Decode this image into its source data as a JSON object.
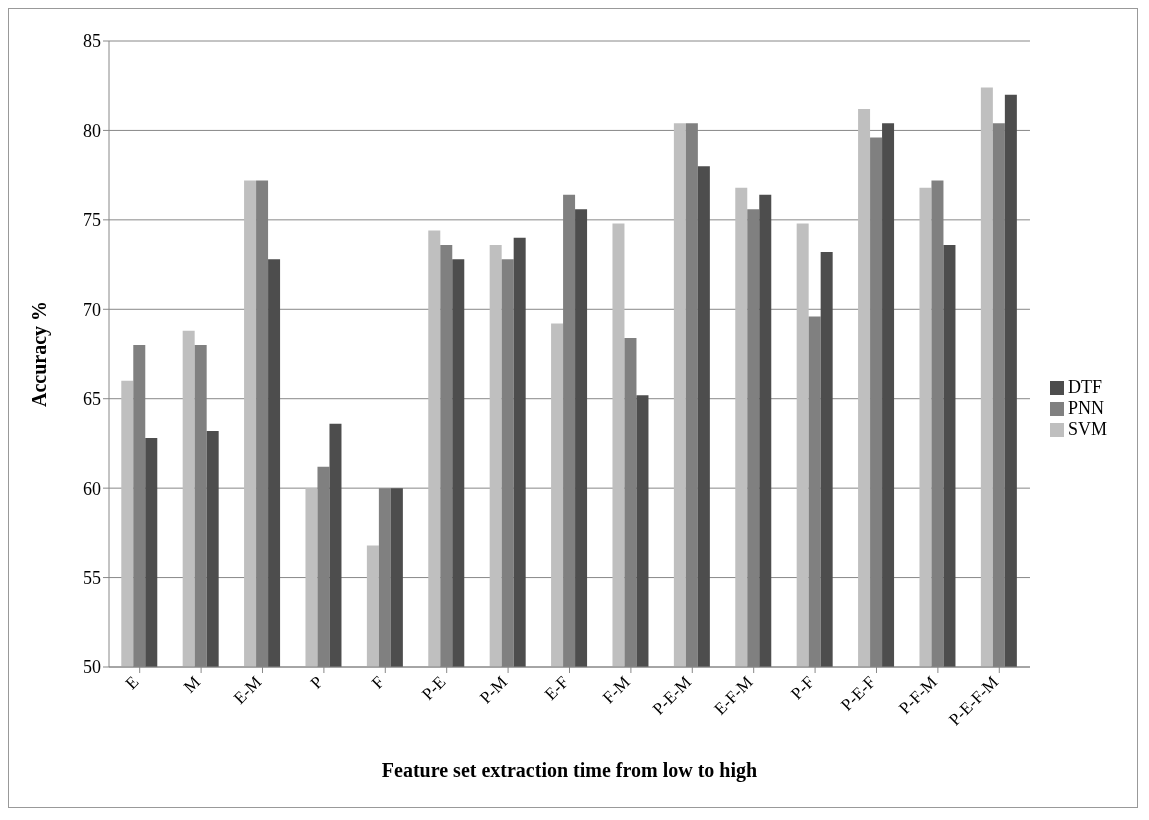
{
  "chart_data": {
    "type": "bar",
    "xlabel": "Feature set extraction time from low to high",
    "ylabel": "Accuracy %",
    "categories": [
      "E",
      "M",
      "E-M",
      "P",
      "F",
      "P-E",
      "P-M",
      "E-F",
      "F-M",
      "P-E-M",
      "E-F-M",
      "P-F",
      "P-E-F",
      "P-F-M",
      "P-E-F-M"
    ],
    "series": [
      {
        "name": "SVM",
        "color": "#bfbfbf",
        "values": [
          66,
          68.8,
          77.2,
          60,
          56.8,
          74.4,
          73.6,
          69.2,
          74.8,
          80.4,
          76.8,
          74.8,
          81.2,
          76.8,
          82.4
        ]
      },
      {
        "name": "PNN",
        "color": "#808080",
        "values": [
          68,
          68,
          77.2,
          61.2,
          60,
          73.6,
          72.8,
          76.4,
          68.4,
          80.4,
          75.6,
          69.6,
          79.6,
          77.2,
          80.4
        ]
      },
      {
        "name": "DTF",
        "color": "#4d4d4d",
        "values": [
          62.8,
          63.2,
          72.8,
          63.6,
          60,
          72.8,
          74,
          75.6,
          65.2,
          78,
          76.4,
          73.2,
          80.4,
          73.6,
          82
        ]
      }
    ],
    "ylim": [
      50,
      85
    ],
    "yticks": [
      50,
      55,
      60,
      65,
      70,
      75,
      80,
      85
    ],
    "grid": "y",
    "legend": "right"
  }
}
